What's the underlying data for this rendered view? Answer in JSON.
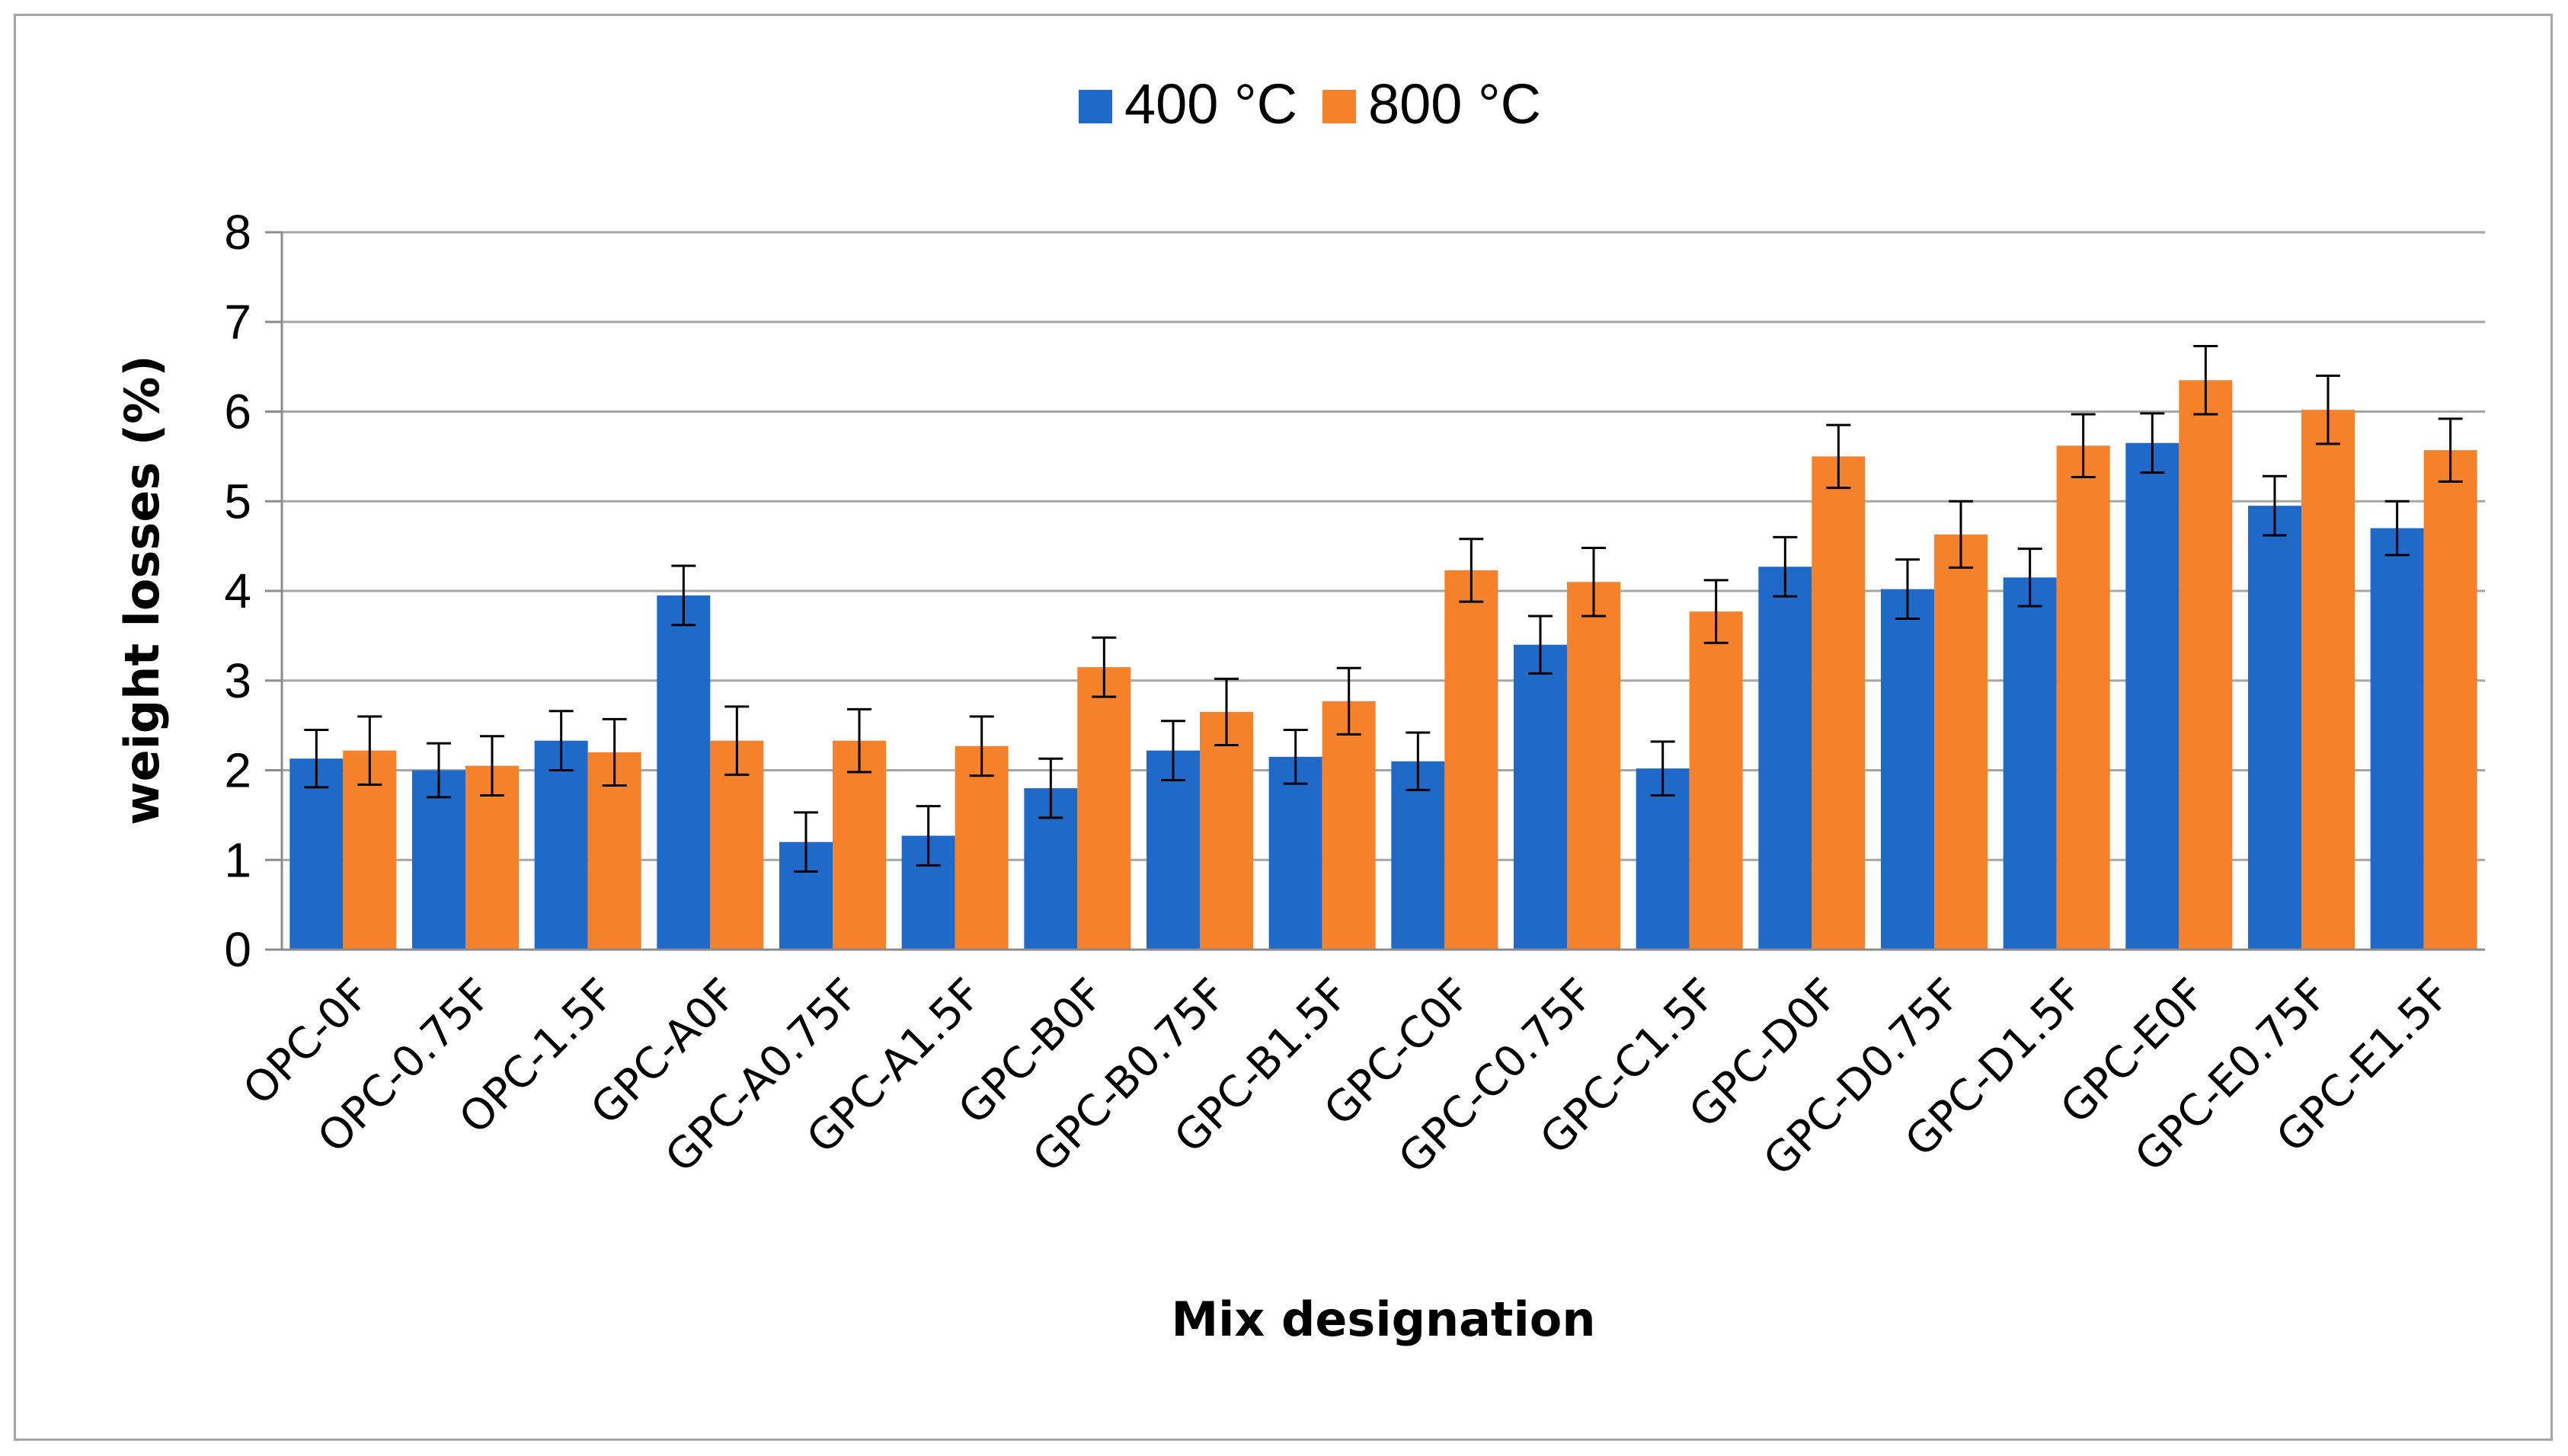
{
  "chart_data": {
    "type": "bar",
    "title": "",
    "xlabel": "Mix designation",
    "ylabel": "weight losses (%)",
    "ylim": [
      0,
      8
    ],
    "yticks": [
      "0",
      "1",
      "2",
      "3",
      "4",
      "5",
      "6",
      "7",
      "8"
    ],
    "grid": "horizontal",
    "legend_position": "top-center",
    "error_bars": true,
    "categories": [
      "OPC-0F",
      "OPC-0.75F",
      "OPC-1.5F",
      "GPC-A0F",
      "GPC-A0.75F",
      "GPC-A1.5F",
      "GPC-B0F",
      "GPC-B0.75F",
      "GPC-B1.5F",
      "GPC-C0F",
      "GPC-C0.75F",
      "GPC-C1.5F",
      "GPC-D0F",
      "GPC-D0.75F",
      "GPC-D1.5F",
      "GPC-E0F",
      "GPC-E0.75F",
      "GPC-E1.5F"
    ],
    "series": [
      {
        "name": "400 °C",
        "color": "#1f6ac9",
        "values": [
          2.13,
          2.0,
          2.33,
          3.95,
          1.2,
          1.27,
          1.8,
          2.22,
          2.15,
          2.1,
          3.4,
          2.02,
          4.27,
          4.02,
          4.15,
          5.65,
          4.95,
          4.7
        ],
        "errors": [
          0.32,
          0.3,
          0.33,
          0.33,
          0.33,
          0.33,
          0.33,
          0.33,
          0.3,
          0.32,
          0.32,
          0.3,
          0.33,
          0.33,
          0.32,
          0.33,
          0.33,
          0.3
        ]
      },
      {
        "name": "800 °C",
        "color": "#f5812a",
        "values": [
          2.22,
          2.05,
          2.2,
          2.33,
          2.33,
          2.27,
          3.15,
          2.65,
          2.77,
          4.23,
          4.1,
          3.77,
          5.5,
          4.63,
          5.62,
          6.35,
          6.02,
          5.57
        ],
        "errors": [
          0.38,
          0.33,
          0.37,
          0.38,
          0.35,
          0.33,
          0.33,
          0.37,
          0.37,
          0.35,
          0.38,
          0.35,
          0.35,
          0.37,
          0.35,
          0.38,
          0.38,
          0.35
        ]
      }
    ]
  }
}
